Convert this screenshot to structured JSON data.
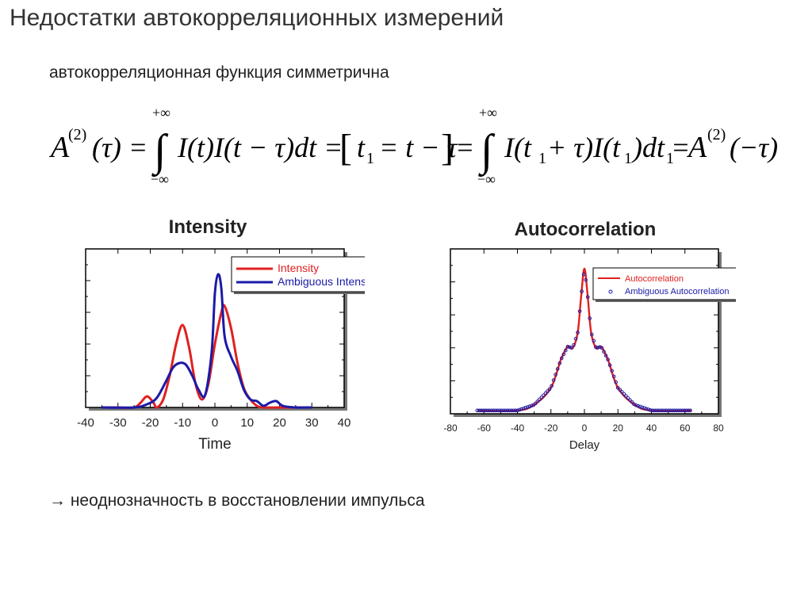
{
  "slide": {
    "title": "Недостатки автокорреляционных измерений",
    "subtitle": "автокорреляционная функция симметрична",
    "conclusion": "→ неоднозначность в восстановлении импульса",
    "equation": {
      "lhs": "A",
      "sup2": "(2)",
      "tau": "(τ) =",
      "upper": "+∞",
      "lower": "−∞",
      "body1": "I(t)I(t − τ)dt =",
      "bracket": "t",
      "sub1": "1",
      "bracket_rest": "= t − τ",
      "eq2": "=",
      "body2a": "I(t",
      "body2b": " + τ)I(t",
      "body2c": ")dt",
      "body2d": " =",
      "rhs": "A",
      "rhs_arg": "(−τ)"
    }
  },
  "chart_data": [
    {
      "type": "line",
      "title": "Intensity",
      "xlabel": "Time",
      "ylabel": "",
      "xlim": [
        -40,
        40
      ],
      "ylim": [
        0,
        1.0
      ],
      "xticks": [
        -40,
        -30,
        -20,
        -10,
        0,
        10,
        20,
        30,
        40
      ],
      "grid": false,
      "legend_position": "top-right",
      "series": [
        {
          "name": "Intensity",
          "color": "#e02020",
          "points": [
            [
              -35,
              0.0
            ],
            [
              -30,
              0.0
            ],
            [
              -25,
              0.0
            ],
            [
              -23,
              0.03
            ],
            [
              -21,
              0.07
            ],
            [
              -19,
              0.03
            ],
            [
              -18,
              0.0
            ],
            [
              -16,
              0.05
            ],
            [
              -14,
              0.2
            ],
            [
              -12,
              0.4
            ],
            [
              -10,
              0.52
            ],
            [
              -8,
              0.38
            ],
            [
              -6,
              0.15
            ],
            [
              -4,
              0.05
            ],
            [
              -2,
              0.15
            ],
            [
              0,
              0.4
            ],
            [
              2,
              0.6
            ],
            [
              3,
              0.64
            ],
            [
              5,
              0.5
            ],
            [
              7,
              0.28
            ],
            [
              9,
              0.12
            ],
            [
              11,
              0.05
            ],
            [
              13,
              0.01
            ],
            [
              15,
              0.0
            ],
            [
              20,
              0.0
            ],
            [
              25,
              0.0
            ],
            [
              30,
              0.0
            ]
          ]
        },
        {
          "name": "Ambiguous Intensity",
          "color": "#1a1aa8",
          "points": [
            [
              -35,
              0.0
            ],
            [
              -25,
              0.0
            ],
            [
              -21,
              0.02
            ],
            [
              -18,
              0.06
            ],
            [
              -15,
              0.17
            ],
            [
              -13,
              0.25
            ],
            [
              -11,
              0.28
            ],
            [
              -9,
              0.27
            ],
            [
              -7,
              0.2
            ],
            [
              -5,
              0.11
            ],
            [
              -3,
              0.08
            ],
            [
              -1,
              0.35
            ],
            [
              0,
              0.72
            ],
            [
              1,
              0.84
            ],
            [
              2,
              0.75
            ],
            [
              3,
              0.45
            ],
            [
              5,
              0.32
            ],
            [
              7,
              0.23
            ],
            [
              9,
              0.11
            ],
            [
              11,
              0.05
            ],
            [
              13,
              0.04
            ],
            [
              15,
              0.01
            ],
            [
              17,
              0.03
            ],
            [
              19,
              0.04
            ],
            [
              21,
              0.01
            ],
            [
              25,
              0.0
            ],
            [
              30,
              0.0
            ]
          ]
        }
      ]
    },
    {
      "type": "line",
      "title": "Autocorrelation",
      "xlabel": "Delay",
      "ylabel": "",
      "xlim": [
        -80,
        80
      ],
      "ylim": [
        0,
        1.0
      ],
      "xticks": [
        -80,
        -60,
        -40,
        -20,
        0,
        20,
        40,
        60,
        80
      ],
      "grid": false,
      "legend_position": "top-right",
      "series": [
        {
          "name": "Autocorrelation",
          "color": "#e02020",
          "style": "line"
        },
        {
          "name": "Ambiguous Autocorrelation",
          "color": "#1a1aa8",
          "style": "markers"
        }
      ],
      "x_range_data": [
        -64,
        64
      ],
      "description_points": [
        [
          -64,
          0.0
        ],
        [
          -40,
          0.0
        ],
        [
          -30,
          0.04
        ],
        [
          -20,
          0.16
        ],
        [
          -14,
          0.36
        ],
        [
          -10,
          0.45
        ],
        [
          -7,
          0.44
        ],
        [
          -4,
          0.55
        ],
        [
          -2,
          0.8
        ],
        [
          0,
          1.0
        ],
        [
          2,
          0.8
        ],
        [
          4,
          0.55
        ],
        [
          7,
          0.44
        ],
        [
          10,
          0.45
        ],
        [
          14,
          0.36
        ],
        [
          20,
          0.16
        ],
        [
          30,
          0.04
        ],
        [
          40,
          0.0
        ],
        [
          64,
          0.0
        ]
      ]
    }
  ]
}
